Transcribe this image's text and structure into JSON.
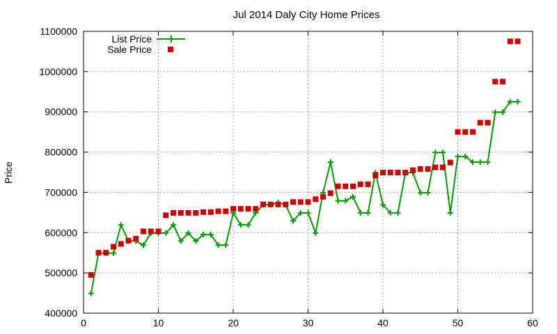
{
  "chart_data": {
    "type": "line",
    "title": "Jul 2014 Daly City Home Prices",
    "xlabel": "",
    "ylabel": "Price",
    "xlim": [
      0,
      60
    ],
    "ylim": [
      400000,
      1100000
    ],
    "xticks": [
      "0",
      "10",
      "20",
      "30",
      "40",
      "50",
      "60"
    ],
    "yticks": [
      "400000",
      "500000",
      "600000",
      "700000",
      "800000",
      "900000",
      "1000000",
      "1100000"
    ],
    "grid": true,
    "legend_position": "top-left",
    "series": [
      {
        "name": "List Price",
        "style": "line-with-plus-markers",
        "color": "#009900",
        "x": [
          1,
          2,
          3,
          4,
          5,
          6,
          7,
          8,
          9,
          10,
          11,
          12,
          13,
          14,
          15,
          16,
          17,
          18,
          19,
          20,
          21,
          22,
          23,
          24,
          25,
          26,
          27,
          28,
          29,
          30,
          31,
          32,
          33,
          34,
          35,
          36,
          37,
          38,
          39,
          40,
          41,
          42,
          43,
          44,
          45,
          46,
          47,
          48,
          49,
          50,
          51,
          52,
          53,
          54,
          55,
          56,
          57,
          58
        ],
        "values": [
          449000,
          549000,
          549000,
          549000,
          619000,
          579000,
          579000,
          569000,
          599000,
          599000,
          599000,
          619000,
          579000,
          599000,
          579000,
          595000,
          595000,
          569000,
          569000,
          649000,
          619000,
          619000,
          649000,
          669000,
          669000,
          675000,
          669000,
          629000,
          649000,
          649000,
          599000,
          699000,
          775000,
          679000,
          679000,
          689000,
          649000,
          649000,
          749000,
          669000,
          649000,
          649000,
          749000,
          749000,
          699000,
          699000,
          799000,
          799000,
          649000,
          789000,
          789000,
          775000,
          775000,
          775000,
          899000,
          899000,
          925000,
          925000
        ]
      },
      {
        "name": "Sale Price",
        "style": "square-markers",
        "color": "#cc0000",
        "x": [
          1,
          2,
          3,
          4,
          5,
          6,
          7,
          8,
          9,
          10,
          11,
          12,
          13,
          14,
          15,
          16,
          17,
          18,
          19,
          20,
          21,
          22,
          23,
          24,
          25,
          26,
          27,
          28,
          29,
          30,
          31,
          32,
          33,
          34,
          35,
          36,
          37,
          38,
          39,
          40,
          41,
          42,
          43,
          44,
          45,
          46,
          47,
          48,
          49,
          50,
          51,
          52,
          53,
          54,
          55,
          56,
          57,
          58
        ],
        "values": [
          495000,
          550000,
          550000,
          565000,
          572000,
          580000,
          585000,
          603000,
          603000,
          603000,
          643000,
          649000,
          649000,
          649000,
          649000,
          651000,
          651000,
          653000,
          653000,
          659000,
          659000,
          659000,
          659000,
          670000,
          670000,
          670000,
          670000,
          676000,
          676000,
          676000,
          683000,
          689000,
          698000,
          715000,
          715000,
          715000,
          720000,
          720000,
          742000,
          749000,
          749000,
          749000,
          749000,
          755000,
          758000,
          758000,
          762000,
          762000,
          774000,
          850000,
          850000,
          850000,
          873000,
          873000,
          975000,
          975000,
          1075000,
          1075000
        ]
      }
    ]
  }
}
